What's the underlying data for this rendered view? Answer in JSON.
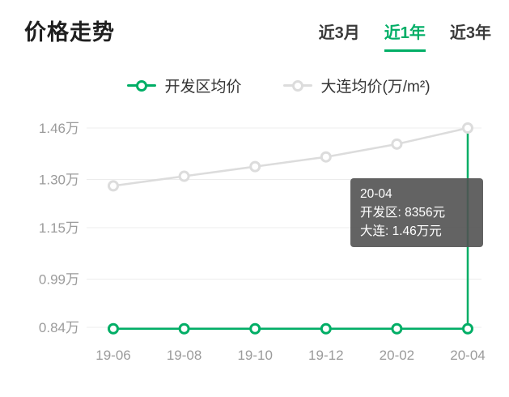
{
  "accent_color": "#00ae66",
  "gray_line_color": "#dcdcdc",
  "header": {
    "title": "价格走势",
    "tabs": [
      {
        "label": "近3月",
        "active": false
      },
      {
        "label": "近1年",
        "active": true
      },
      {
        "label": "近3年",
        "active": false
      }
    ]
  },
  "legend": [
    {
      "label": "开发区均价",
      "color": "#00ae66"
    },
    {
      "label": "大连均价(万/m²)",
      "color": "#dcdcdc"
    }
  ],
  "tooltip": {
    "title": "20-04",
    "line1": "开发区: 8356元",
    "line2": "大连: 1.46万元"
  },
  "chart_data": {
    "type": "line",
    "x": [
      "19-06",
      "19-08",
      "19-10",
      "19-12",
      "20-02",
      "20-04"
    ],
    "series": [
      {
        "name": "开发区均价",
        "color": "#00ae66",
        "values": [
          0.8356,
          0.8356,
          0.8356,
          0.8356,
          0.8356,
          0.8356
        ]
      },
      {
        "name": "大连均价(万/m²)",
        "color": "#dcdcdc",
        "values": [
          1.28,
          1.31,
          1.34,
          1.37,
          1.41,
          1.46
        ]
      }
    ],
    "ylabel_ticks": [
      "1.46万",
      "1.30万",
      "1.15万",
      "0.99万",
      "0.84万"
    ],
    "ytick_values": [
      1.46,
      1.3,
      1.15,
      0.99,
      0.84
    ],
    "ylim": [
      0.84,
      1.46
    ],
    "highlight_x": "20-04",
    "grid": true,
    "legend_position": "top"
  }
}
